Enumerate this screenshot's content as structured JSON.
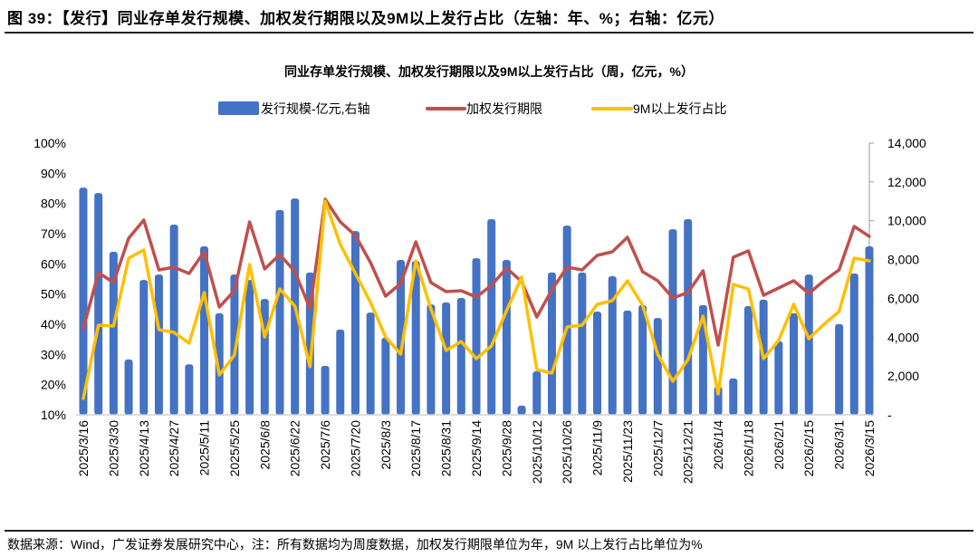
{
  "figure": {
    "title": "图 39：【发行】同业存单发行规模、加权发行期限以及9M以上发行占比（左轴：年、%；右轴：亿元）",
    "source": "数据来源：Wind，广发证券发展研究中心，注：所有数据均为周度数据，加权发行期限单位为年，9M 以上发行占比单位为%"
  },
  "chart_data": {
    "type": "bar+line",
    "title": "同业存单发行规模、加权发行期限以及9M以上发行占比（周，亿元，%）",
    "legend_position": "top",
    "legend": [
      "发行规模-亿元,右轴",
      "加权发行期限",
      "9M以上发行占比"
    ],
    "colors": {
      "bar": "#4472C4",
      "term": "#C0504D",
      "ratio9m": "#FFC000"
    },
    "left_axis": {
      "ylim": [
        10,
        100
      ],
      "ticks": [
        "10%",
        "20%",
        "30%",
        "40%",
        "50%",
        "60%",
        "70%",
        "80%",
        "90%",
        "100%"
      ]
    },
    "right_axis": {
      "ylim": [
        0,
        14000
      ],
      "ticks": [
        "-",
        "2,000",
        "4,000",
        "6,000",
        "8,000",
        "10,000",
        "12,000",
        "14,000"
      ]
    },
    "x_tick_labels": [
      "2025/3/16",
      "2025/3/30",
      "2025/4/13",
      "2025/4/27",
      "2025/5/11",
      "2025/5/25",
      "2025/6/8",
      "2025/6/22",
      "2025/7/6",
      "2025/7/20",
      "2025/8/3",
      "2025/8/17",
      "2025/8/31",
      "2025/9/14",
      "2025/9/28",
      "2025/10/12",
      "2025/10/26",
      "2025/11/9",
      "2025/11/23",
      "2025/12/7",
      "2025/12/21",
      "2026/1/4",
      "2026/1/18",
      "2026/2/1",
      "2026/2/15",
      "2026/3/1",
      "2026/3/15"
    ],
    "n_points": 53,
    "series": [
      {
        "name": "发行规模-亿元,右轴",
        "axis": "right",
        "type": "bar",
        "values": [
          11710,
          11430,
          8400,
          2850,
          6950,
          7230,
          9800,
          2600,
          8680,
          5230,
          7230,
          6950,
          5970,
          10550,
          11150,
          7330,
          2520,
          4390,
          9470,
          5270,
          3970,
          7980,
          7930,
          5690,
          5790,
          6020,
          8070,
          10080,
          7980,
          470,
          2240,
          7330,
          9750,
          7330,
          5320,
          7140,
          5370,
          5650,
          4990,
          9560,
          10080,
          5650,
          1450,
          1870,
          5600,
          5930,
          3800,
          5230,
          7230,
          null,
          4670,
          7280,
          8680
        ]
      },
      {
        "name": "加权发行期限",
        "axis": "left",
        "type": "line",
        "values": [
          38.5,
          57.1,
          53.8,
          68.5,
          74.5,
          58.0,
          58.9,
          56.8,
          64.0,
          45.7,
          51.1,
          73.9,
          58.3,
          63.1,
          57.4,
          45.1,
          81.4,
          73.9,
          69.4,
          60.4,
          49.3,
          53.5,
          67.3,
          53.8,
          50.8,
          51.1,
          49.0,
          52.9,
          58.6,
          54.1,
          42.4,
          51.4,
          58.9,
          58.0,
          62.8,
          64.0,
          68.8,
          57.4,
          54.4,
          48.7,
          50.5,
          57.7,
          33.1,
          62.2,
          64.3,
          49.6,
          52.0,
          54.4,
          50.2,
          54.4,
          58.0,
          72.4,
          69.1
        ]
      },
      {
        "name": "9M以上发行占比",
        "axis": "left",
        "type": "line",
        "values": [
          15.4,
          39.7,
          39.4,
          61.9,
          64.6,
          38.2,
          37.3,
          33.7,
          50.5,
          23.2,
          29.8,
          59.8,
          35.8,
          51.7,
          46.0,
          25.9,
          80.8,
          66.4,
          56.8,
          47.2,
          35.8,
          30.1,
          61.0,
          45.1,
          31.3,
          34.3,
          28.6,
          32.8,
          44.5,
          55.6,
          25.0,
          23.8,
          39.1,
          39.7,
          46.6,
          47.8,
          54.4,
          46.3,
          30.1,
          21.1,
          28.3,
          42.7,
          16.9,
          53.2,
          51.7,
          28.6,
          34.6,
          46.6,
          35.2,
          40.0,
          44.2,
          61.9,
          61.0
        ]
      }
    ]
  }
}
